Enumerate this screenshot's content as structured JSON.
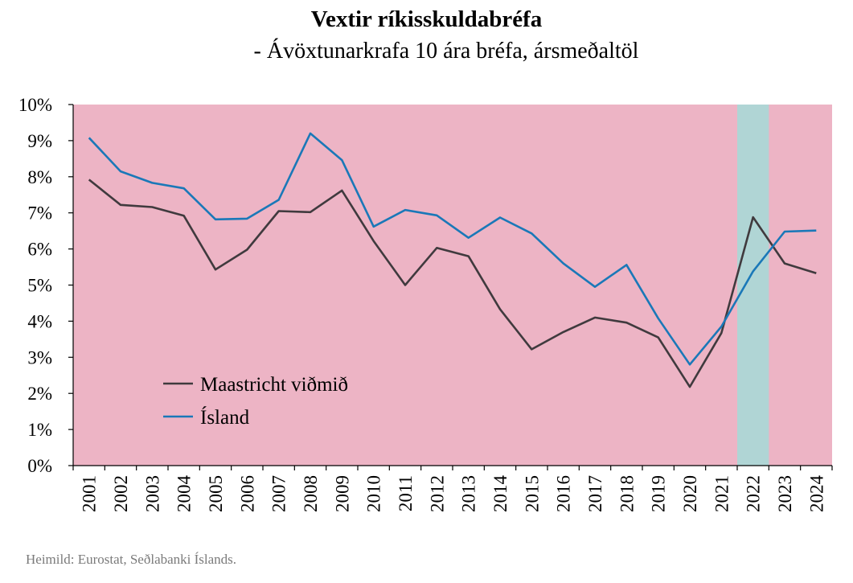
{
  "title": "Vextir ríkisskuldabréfa",
  "subtitle": "- Ávöxtunarkrafa 10 ára bréfa, ársmeðaltöl",
  "source": "Heimild: Eurostat, Seðlabanki Íslands.",
  "colors": {
    "background": "#edb4c5",
    "highlight": "#b0d5d5",
    "maastricht": "#403a3e",
    "island": "#1a78b8"
  },
  "chart_data": {
    "type": "line",
    "x": [
      "2001",
      "2002",
      "2003",
      "2004",
      "2005",
      "2006",
      "2007",
      "2008",
      "2009",
      "2010",
      "2011",
      "2012",
      "2013",
      "2014",
      "2015",
      "2016",
      "2017",
      "2018",
      "2019",
      "2020",
      "2021",
      "2022",
      "2023",
      "2024"
    ],
    "series": [
      {
        "name": "Maastricht viðmið",
        "color": "#403a3e",
        "values": [
          7.92,
          7.22,
          7.16,
          6.92,
          5.43,
          5.98,
          7.05,
          7.02,
          7.62,
          6.22,
          5.0,
          6.03,
          5.8,
          4.33,
          3.22,
          3.7,
          4.1,
          3.96,
          3.55,
          2.18,
          3.67,
          6.88,
          5.6,
          5.33
        ]
      },
      {
        "name": "Ísland",
        "color": "#1a78b8",
        "values": [
          9.08,
          8.15,
          7.83,
          7.68,
          6.82,
          6.84,
          7.36,
          9.2,
          8.46,
          6.62,
          7.08,
          6.93,
          6.31,
          6.87,
          6.43,
          5.6,
          4.95,
          5.56,
          4.08,
          2.8,
          3.85,
          5.38,
          6.48,
          6.51
        ]
      }
    ],
    "ylim": [
      0,
      10
    ],
    "yticks": [
      "0%",
      "1%",
      "2%",
      "3%",
      "4%",
      "5%",
      "6%",
      "7%",
      "8%",
      "9%",
      "10%"
    ],
    "highlight_category": "2022",
    "legend_position": "lower-left",
    "grid": false
  }
}
